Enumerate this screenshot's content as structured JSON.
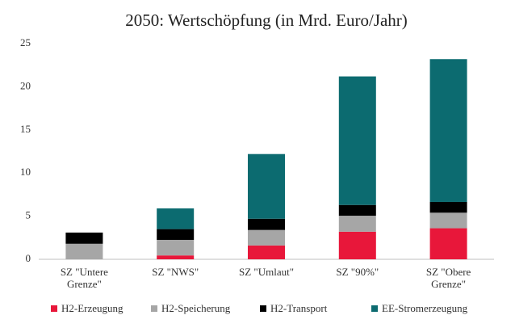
{
  "chart_data": {
    "type": "stacked_bar",
    "title": "2050: Wertschöpfung (in Mrd. Euro/Jahr)",
    "categories": [
      "SZ \"Untere Grenze\"",
      "SZ \"NWS\"",
      "SZ \"Umlaut\"",
      "SZ \"90%\"",
      "SZ \"Obere Grenze\""
    ],
    "series": [
      {
        "name": "H2-Erzeugung",
        "color": "#e8173a",
        "values": [
          0,
          0.45,
          1.6,
          3.2,
          3.6
        ]
      },
      {
        "name": "H2-Speicherung",
        "color": "#a6a6a6",
        "values": [
          1.8,
          1.8,
          1.8,
          1.85,
          1.8
        ]
      },
      {
        "name": "H2-Transport",
        "color": "#000000",
        "values": [
          1.3,
          1.25,
          1.3,
          1.25,
          1.25
        ]
      },
      {
        "name": "EE-Stromerzeugung",
        "color": "#0c6b70",
        "values": [
          0,
          2.4,
          7.5,
          14.9,
          16.55
        ]
      }
    ],
    "ylim": [
      0,
      25
    ],
    "yticks": [
      0,
      5,
      10,
      15,
      20,
      25
    ],
    "grid": false,
    "legend": "bottom"
  }
}
